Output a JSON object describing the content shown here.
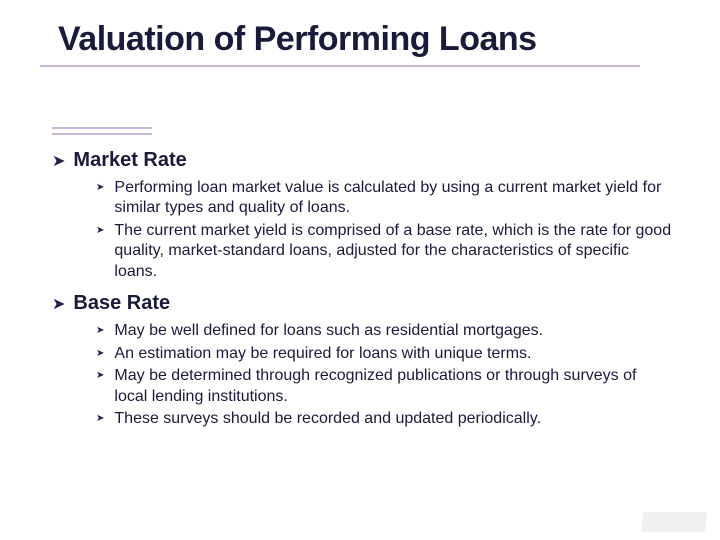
{
  "colors": {
    "text": "#1a1a3a",
    "rule": "#c8b8d8",
    "bullet": "#202050",
    "background": "#ffffff"
  },
  "typography": {
    "title_fontsize": 34,
    "section_fontsize": 20,
    "body_fontsize": 16,
    "font_family": "Verdana"
  },
  "slide": {
    "title": "Valuation of Performing Loans",
    "sections": [
      {
        "heading": "Market Rate",
        "items": [
          "Performing loan market value is calculated by using a current market yield for similar types and quality of loans.",
          "The current market yield is comprised of a base rate, which is the rate for good quality, market-standard loans, adjusted for the characteristics of specific loans."
        ]
      },
      {
        "heading": "Base Rate",
        "items": [
          "May be well defined for loans such as residential mortgages.",
          "An estimation may be required for loans with unique terms.",
          "May be determined through recognized publications or through surveys of local lending institutions.",
          "These surveys should be recorded and updated periodically."
        ]
      }
    ]
  },
  "bullets": {
    "level1": "➤",
    "level2": "➤"
  }
}
